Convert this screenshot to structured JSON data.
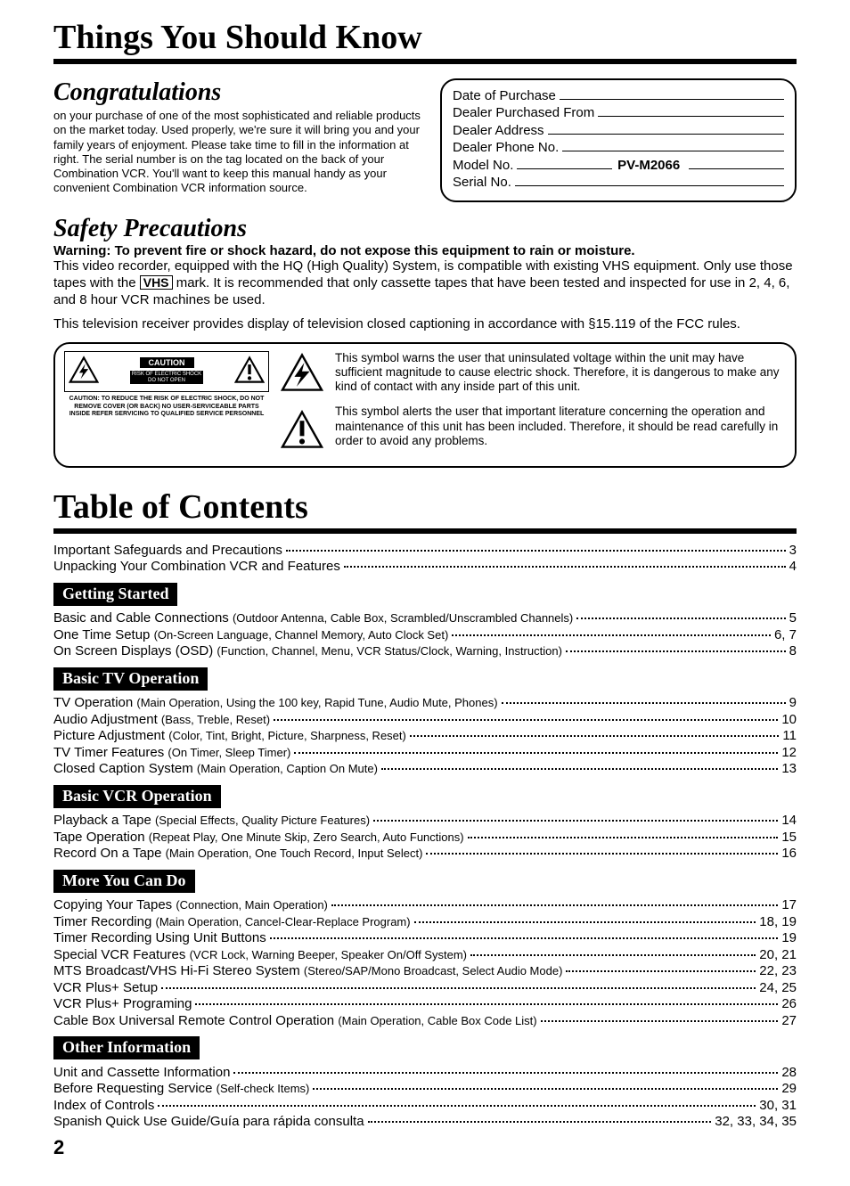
{
  "main_title": "Things You Should Know",
  "congrats": {
    "heading": "Congratulations",
    "body": "on your purchase of one of the most sophisticated and reliable products on the market today. Used properly, we're sure it will bring you and your family years of enjoyment. Please take time to fill in the information at right. The serial number is on the tag located on the back of your Combination VCR. You'll want to keep this manual handy as your convenient Combination VCR information source."
  },
  "info_box": {
    "rows": [
      {
        "label": "Date of Purchase"
      },
      {
        "label": "Dealer Purchased From"
      },
      {
        "label": "Dealer Address"
      },
      {
        "label": "Dealer Phone No."
      },
      {
        "label": "Model No.",
        "value": "PV-M2066"
      },
      {
        "label": "Serial No."
      }
    ]
  },
  "safety": {
    "heading": "Safety Precautions",
    "warning": "Warning:  To prevent fire or shock hazard, do not expose this equipment to rain or moisture.",
    "body_pre": "This video recorder, equipped with the HQ (High Quality) System, is compatible with existing VHS equipment. Only use those tapes with the ",
    "body_post": " mark.  It is recommended that only cassette tapes that have been tested and inspected for use in 2, 4, 6, and 8 hour VCR machines be used.",
    "vhs_label": "VHS",
    "para2": "This television receiver provides display of television closed captioning in accordance with §15.119 of the FCC rules."
  },
  "caution_panel": {
    "caution_label": "CAUTION",
    "caution_sub1": "RISK OF ELECTRIC SHOCK",
    "caution_sub2": "DO NOT OPEN",
    "caution_text": "CAUTION: TO REDUCE THE RISK OF ELECTRIC SHOCK, DO NOT REMOVE COVER (OR BACK) NO USER-SERVICEABLE PARTS INSIDE REFER SERVICING TO QUALIFIED SERVICE PERSONNEL",
    "bolt_text": "This symbol warns the user that uninsulated voltage within the unit may have sufficient magnitude to cause electric shock.  Therefore, it is dangerous to make any kind of contact with any inside part of this unit.",
    "excl_text": "This symbol alerts the user that important literature concerning the operation and maintenance of this unit has been included. Therefore, it should be read carefully in order to avoid any problems."
  },
  "toc_title": "Table of Contents",
  "toc_top": [
    {
      "label": "Important Safeguards and Precautions",
      "page": "3"
    },
    {
      "label": "Unpacking Your Combination VCR and Features",
      "page": "4"
    }
  ],
  "sections": [
    {
      "title": "Getting Started",
      "items": [
        {
          "label": "Basic and Cable Connections",
          "sub": "(Outdoor Antenna, Cable Box, Scrambled/Unscrambled Channels)",
          "page": "5"
        },
        {
          "label": "One Time Setup",
          "sub": "(On-Screen Language, Channel Memory, Auto Clock Set)",
          "page": "6, 7"
        },
        {
          "label": "On Screen Displays (OSD)",
          "sub": "(Function, Channel, Menu, VCR Status/Clock, Warning, Instruction)",
          "page": "8"
        }
      ]
    },
    {
      "title": "Basic TV Operation",
      "items": [
        {
          "label": "TV Operation",
          "sub": "(Main Operation, Using the 100 key, Rapid Tune, Audio Mute, Phones)",
          "page": "9"
        },
        {
          "label": "Audio Adjustment",
          "sub": "(Bass, Treble, Reset)",
          "page": "10"
        },
        {
          "label": "Picture Adjustment",
          "sub": " (Color, Tint, Bright, Picture, Sharpness, Reset)",
          "page": "11"
        },
        {
          "label": "TV Timer Features",
          "sub": "(On Timer, Sleep Timer)",
          "page": "12"
        },
        {
          "label": "Closed Caption System",
          "sub": "(Main Operation, Caption On Mute)",
          "page": "13"
        }
      ]
    },
    {
      "title": "Basic VCR Operation",
      "items": [
        {
          "label": "Playback a Tape",
          "sub": "(Special Effects, Quality Picture Features)",
          "page": "14"
        },
        {
          "label": "Tape Operation",
          "sub": "(Repeat Play, One Minute Skip, Zero Search, Auto Functions)",
          "page": "15"
        },
        {
          "label": "Record On a Tape",
          "sub": "(Main Operation, One Touch Record, Input Select)",
          "page": "16"
        }
      ]
    },
    {
      "title": "More You Can Do",
      "items": [
        {
          "label": "Copying Your Tapes",
          "sub": "(Connection, Main Operation)",
          "page": "17"
        },
        {
          "label": "Timer Recording",
          "sub": "(Main Operation, Cancel-Clear-Replace Program)",
          "page": "18, 19"
        },
        {
          "label": "Timer Recording Using Unit Buttons",
          "sub": "",
          "page": "19"
        },
        {
          "label": "Special VCR Features",
          "sub": "(VCR Lock, Warning Beeper, Speaker On/Off System)",
          "page": "20, 21"
        },
        {
          "label": "MTS Broadcast/VHS Hi-Fi Stereo System",
          "sub": "(Stereo/SAP/Mono Broadcast, Select Audio Mode)",
          "page": "22, 23"
        },
        {
          "label": "VCR Plus+ Setup",
          "sub": "",
          "page": "24, 25"
        },
        {
          "label": "VCR Plus+ Programing",
          "sub": "",
          "page": "26"
        },
        {
          "label": "Cable Box Universal Remote Control Operation",
          "sub": "(Main Operation, Cable Box Code List)",
          "page": "27"
        }
      ]
    },
    {
      "title": "Other Information",
      "items": [
        {
          "label": "Unit and Cassette Information",
          "sub": "",
          "page": "28"
        },
        {
          "label": "Before Requesting Service",
          "sub": "(Self-check Items)",
          "page": "29"
        },
        {
          "label": "Index of Controls",
          "sub": "",
          "page": "30, 31"
        },
        {
          "label": "Spanish Quick Use Guide/Guía para rápida consulta",
          "sub": "",
          "page": "32, 33, 34, 35"
        }
      ]
    }
  ],
  "page_number": "2",
  "colors": {
    "bg": "#ffffff",
    "fg": "#000000"
  }
}
